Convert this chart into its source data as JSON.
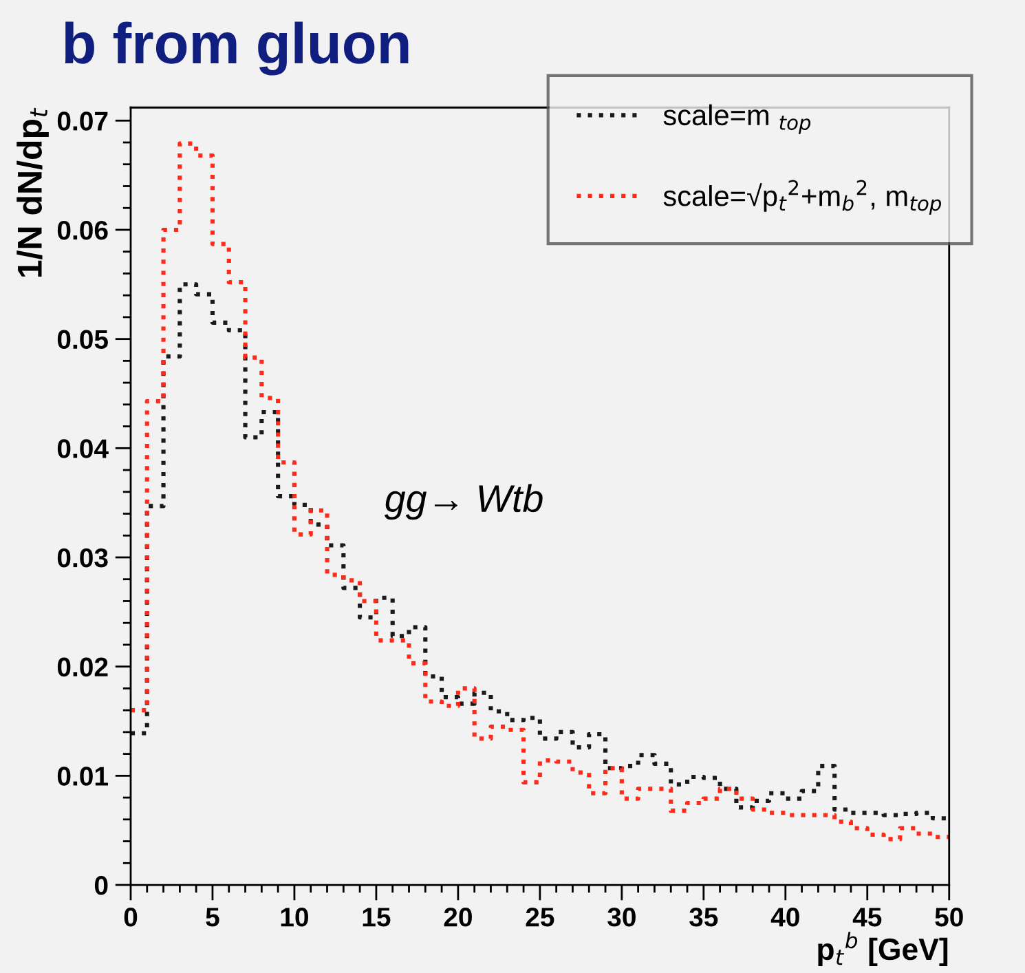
{
  "chart_data": {
    "type": "histogram",
    "title": "b from gluon",
    "xlabel": "p$_{t}$$^{b}$ [GeV]",
    "ylabel": "1/N dN/dp$_{t}$",
    "annotations": [
      "gg→ Wtb"
    ],
    "bins": [
      0,
      1,
      2,
      3,
      4,
      5,
      6,
      7,
      8,
      9,
      10,
      11,
      12,
      13,
      14,
      15,
      16,
      17,
      18,
      19,
      20,
      21,
      22,
      23,
      24,
      25,
      26,
      27,
      28,
      29,
      30,
      31,
      32,
      33,
      34,
      35,
      36,
      37,
      38,
      39,
      40,
      41,
      42,
      43,
      44,
      45,
      46,
      47,
      48,
      49,
      50
    ],
    "series": [
      {
        "name": "scale=m $_{top}$",
        "color": "#1a1a1a",
        "values": [
          0.0139,
          0.0347,
          0.0484,
          0.055,
          0.0541,
          0.0515,
          0.0508,
          0.041,
          0.0433,
          0.0356,
          0.0348,
          0.033,
          0.0311,
          0.0272,
          0.0245,
          0.0263,
          0.0228,
          0.0236,
          0.0191,
          0.0172,
          0.0166,
          0.0176,
          0.0159,
          0.0151,
          0.0153,
          0.0134,
          0.014,
          0.0126,
          0.0138,
          0.0107,
          0.0109,
          0.0119,
          0.0111,
          0.0092,
          0.0099,
          0.0098,
          0.0088,
          0.0071,
          0.0077,
          0.0084,
          0.0079,
          0.0086,
          0.0109,
          0.0069,
          0.0066,
          0.0066,
          0.0064,
          0.0065,
          0.0066,
          0.0061
        ]
      },
      {
        "name": "scale=√p$_{t}$$^{2}$+m$_{b}$$^{2}$, m$_{top}$",
        "color": "#ff2a1a",
        "values": [
          0.016,
          0.0443,
          0.06,
          0.0679,
          0.0668,
          0.0587,
          0.0552,
          0.0483,
          0.0446,
          0.0387,
          0.0321,
          0.0343,
          0.0284,
          0.0279,
          0.026,
          0.0224,
          0.0224,
          0.0203,
          0.0168,
          0.0164,
          0.018,
          0.0134,
          0.0145,
          0.0142,
          0.0094,
          0.0114,
          0.0113,
          0.0103,
          0.0084,
          0.0107,
          0.0079,
          0.0088,
          0.0088,
          0.0068,
          0.0075,
          0.0079,
          0.0088,
          0.0079,
          0.0069,
          0.0066,
          0.0064,
          0.0064,
          0.0064,
          0.0058,
          0.0052,
          0.0046,
          0.0042,
          0.0052,
          0.0047,
          0.0044
        ]
      }
    ],
    "line_style": "dotted",
    "legend": "top right",
    "grid": false,
    "xlim": [
      0,
      50
    ],
    "ylim": [
      0,
      0.0712
    ],
    "xticks": [
      0,
      {
        "value": 1,
        "label": null
      },
      {
        "value": 2,
        "label": null
      },
      {
        "value": 3,
        "label": null
      },
      {
        "value": 4,
        "label": null
      },
      5,
      {
        "value": 6,
        "label": null
      },
      {
        "value": 7,
        "label": null
      },
      {
        "value": 8,
        "label": null
      },
      {
        "value": 9,
        "label": null
      },
      10,
      {
        "value": 11,
        "label": null
      },
      {
        "value": 12,
        "label": null
      },
      {
        "value": 13,
        "label": null
      },
      {
        "value": 14,
        "label": null
      },
      15,
      {
        "value": 16,
        "label": null
      },
      {
        "value": 17,
        "label": null
      },
      {
        "value": 18,
        "label": null
      },
      {
        "value": 19,
        "label": null
      },
      20,
      {
        "value": 21,
        "label": null
      },
      {
        "value": 22,
        "label": null
      },
      {
        "value": 23,
        "label": null
      },
      {
        "value": 24,
        "label": null
      },
      25,
      {
        "value": 26,
        "label": null
      },
      {
        "value": 27,
        "label": null
      },
      {
        "value": 28,
        "label": null
      },
      {
        "value": 29,
        "label": null
      },
      30,
      {
        "value": 31,
        "label": null
      },
      {
        "value": 32,
        "label": null
      },
      {
        "value": 33,
        "label": null
      },
      {
        "value": 34,
        "label": null
      },
      35,
      {
        "value": 36,
        "label": null
      },
      {
        "value": 37,
        "label": null
      },
      {
        "value": 38,
        "label": null
      },
      {
        "value": 39,
        "label": null
      },
      40,
      {
        "value": 41,
        "label": null
      },
      {
        "value": 42,
        "label": null
      },
      {
        "value": 43,
        "label": null
      },
      {
        "value": 44,
        "label": null
      },
      45,
      {
        "value": 46,
        "label": null
      },
      {
        "value": 47,
        "label": null
      },
      {
        "value": 48,
        "label": null
      },
      {
        "value": 49,
        "label": null
      },
      50
    ],
    "yticks": [
      0,
      {
        "value": 0.002,
        "label": null
      },
      {
        "value": 0.004,
        "label": null
      },
      {
        "value": 0.006,
        "label": null
      },
      {
        "value": 0.008,
        "label": null
      },
      0.01,
      {
        "value": 0.012,
        "label": null
      },
      {
        "value": 0.014,
        "label": null
      },
      {
        "value": 0.016,
        "label": null
      },
      {
        "value": 0.018,
        "label": null
      },
      0.02,
      {
        "value": 0.022,
        "label": null
      },
      {
        "value": 0.024,
        "label": null
      },
      {
        "value": 0.026,
        "label": null
      },
      {
        "value": 0.028,
        "label": null
      },
      0.03,
      {
        "value": 0.032,
        "label": null
      },
      {
        "value": 0.034,
        "label": null
      },
      {
        "value": 0.036,
        "label": null
      },
      {
        "value": 0.038,
        "label": null
      },
      0.04,
      {
        "value": 0.042,
        "label": null
      },
      {
        "value": 0.044,
        "label": null
      },
      {
        "value": 0.046,
        "label": null
      },
      {
        "value": 0.048,
        "label": null
      },
      0.05,
      {
        "value": 0.052,
        "label": null
      },
      {
        "value": 0.054,
        "label": null
      },
      {
        "value": 0.056,
        "label": null
      },
      {
        "value": 0.058,
        "label": null
      },
      0.06,
      {
        "value": 0.062,
        "label": null
      },
      {
        "value": 0.064,
        "label": null
      },
      {
        "value": 0.066,
        "label": null
      },
      {
        "value": 0.068,
        "label": null
      },
      0.07
    ]
  }
}
